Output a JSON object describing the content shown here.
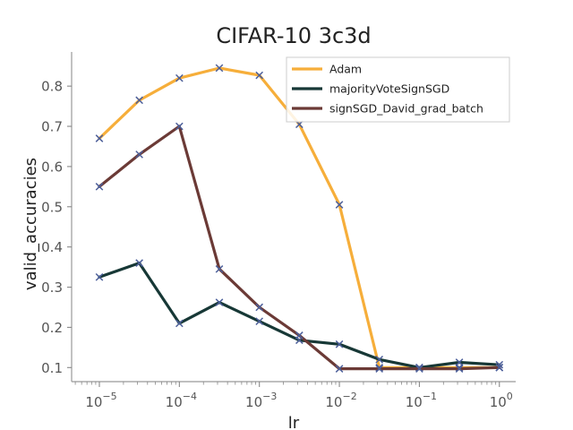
{
  "chart_data": {
    "type": "line",
    "title": "CIFAR-10 3c3d",
    "xlabel": "lr",
    "ylabel": "valid_accuracies",
    "x_scale": "log",
    "x": [
      1e-05,
      3.16e-05,
      0.0001,
      0.000316,
      0.001,
      0.00316,
      0.01,
      0.0316,
      0.1,
      0.316,
      1
    ],
    "xlim": [
      4.5e-06,
      1.6
    ],
    "ylim": [
      0.065,
      0.885
    ],
    "x_ticks": [
      {
        "value": 1e-05,
        "base": "10",
        "exp": "−5"
      },
      {
        "value": 0.0001,
        "base": "10",
        "exp": "−4"
      },
      {
        "value": 0.001,
        "base": "10",
        "exp": "−3"
      },
      {
        "value": 0.01,
        "base": "10",
        "exp": "−2"
      },
      {
        "value": 0.1,
        "base": "10",
        "exp": "−1"
      },
      {
        "value": 1,
        "base": "10",
        "exp": "0"
      }
    ],
    "y_ticks": [
      "0.1",
      "0.2",
      "0.3",
      "0.4",
      "0.5",
      "0.6",
      "0.7",
      "0.8"
    ],
    "grid": false,
    "legend_position": "top-right",
    "marker": "x",
    "marker_color": "#4c5f9a",
    "series": [
      {
        "name": "Adam",
        "color": "#f6ae3a",
        "values": [
          0.67,
          0.765,
          0.82,
          0.845,
          0.827,
          0.705,
          0.505,
          0.1,
          0.1,
          0.1,
          0.1
        ]
      },
      {
        "name": "majorityVoteSignSGD",
        "color": "#173836",
        "values": [
          0.325,
          0.36,
          0.21,
          0.262,
          0.215,
          0.168,
          0.158,
          0.12,
          0.1,
          0.113,
          0.107
        ]
      },
      {
        "name": "signSGD_David_grad_batch",
        "color": "#6b3a36",
        "values": [
          0.55,
          0.63,
          0.7,
          0.345,
          0.25,
          0.18,
          0.097,
          0.097,
          0.097,
          0.097,
          0.1
        ]
      }
    ]
  }
}
